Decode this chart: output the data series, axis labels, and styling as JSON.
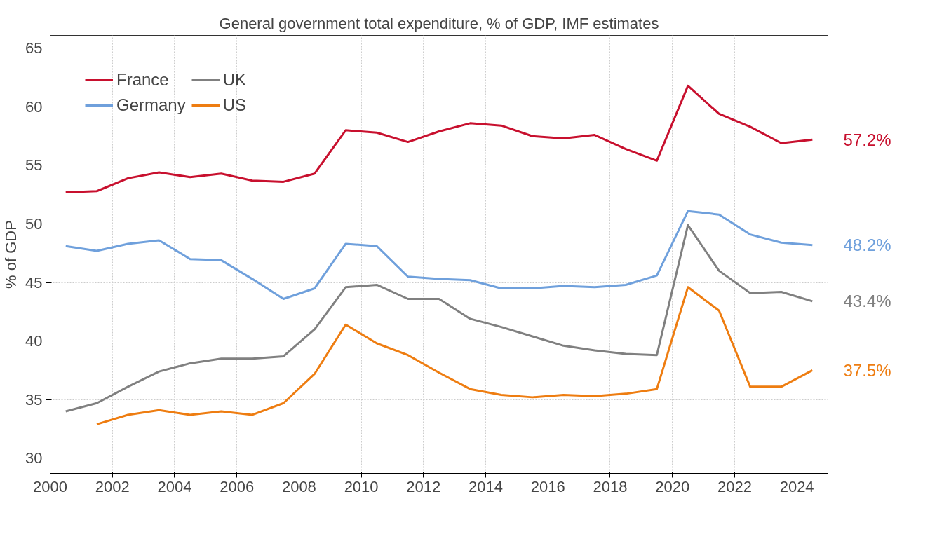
{
  "chart_data": {
    "type": "line",
    "title": "General government total expenditure, % of GDP, IMF estimates",
    "ylabel": "% of GDP",
    "x": [
      2000.5,
      2001.5,
      2002.5,
      2003.5,
      2004.5,
      2005.5,
      2006.5,
      2007.5,
      2008.5,
      2009.5,
      2010.5,
      2011.5,
      2012.5,
      2013.5,
      2014.5,
      2015.5,
      2016.5,
      2017.5,
      2018.5,
      2019.5,
      2020.5,
      2021.5,
      2022.5,
      2023.5,
      2024.5
    ],
    "series": [
      {
        "name": "France",
        "color": "#c8102e",
        "values": [
          52.7,
          52.8,
          53.9,
          54.4,
          54.0,
          54.3,
          53.7,
          53.6,
          54.3,
          58.0,
          57.8,
          57.0,
          57.9,
          58.6,
          58.4,
          57.5,
          57.3,
          57.6,
          56.4,
          55.4,
          61.8,
          59.4,
          58.3,
          56.9,
          57.2
        ],
        "value_labels": [
          null,
          null,
          null,
          null,
          null,
          null,
          null,
          null,
          null,
          null,
          null,
          null,
          null,
          null,
          null,
          null,
          null,
          null,
          null,
          null,
          null,
          null,
          null,
          null,
          "57.2%"
        ]
      },
      {
        "name": "Germany",
        "color": "#6fa0dc",
        "values": [
          48.1,
          47.7,
          48.3,
          48.6,
          47.0,
          46.9,
          45.3,
          43.6,
          44.5,
          48.3,
          48.1,
          45.5,
          45.3,
          45.2,
          44.5,
          44.5,
          44.7,
          44.6,
          44.8,
          45.6,
          51.1,
          50.8,
          49.1,
          48.4,
          48.2
        ],
        "value_labels": [
          null,
          null,
          null,
          null,
          null,
          null,
          null,
          null,
          null,
          null,
          null,
          null,
          null,
          null,
          null,
          null,
          null,
          null,
          null,
          null,
          null,
          null,
          null,
          null,
          "48.2%"
        ]
      },
      {
        "name": "UK",
        "color": "#808080",
        "values": [
          34.0,
          34.7,
          36.1,
          37.4,
          38.1,
          38.5,
          38.5,
          38.7,
          41.0,
          44.6,
          44.8,
          43.6,
          43.6,
          41.9,
          41.2,
          40.4,
          39.6,
          39.2,
          38.9,
          38.8,
          49.9,
          46.0,
          44.1,
          44.2,
          43.4
        ],
        "value_labels": [
          null,
          null,
          null,
          null,
          null,
          null,
          null,
          null,
          null,
          null,
          null,
          null,
          null,
          null,
          null,
          null,
          null,
          null,
          null,
          null,
          null,
          null,
          null,
          null,
          "43.4%"
        ]
      },
      {
        "name": "US",
        "color": "#ee7d11",
        "values": [
          null,
          32.9,
          33.7,
          34.1,
          33.7,
          34.0,
          33.7,
          34.7,
          37.2,
          41.4,
          39.8,
          38.8,
          37.3,
          35.9,
          35.4,
          35.2,
          35.4,
          35.3,
          35.5,
          35.9,
          44.6,
          42.6,
          36.1,
          36.1,
          37.5
        ],
        "value_labels": [
          null,
          null,
          null,
          null,
          null,
          null,
          null,
          null,
          null,
          null,
          null,
          null,
          null,
          null,
          null,
          null,
          null,
          null,
          null,
          null,
          null,
          null,
          null,
          null,
          "37.5%"
        ]
      }
    ],
    "xlim": [
      2000,
      2025
    ],
    "xticks": [
      2000,
      2002,
      2004,
      2006,
      2008,
      2010,
      2012,
      2014,
      2016,
      2018,
      2020,
      2022,
      2024
    ],
    "ylim": [
      28.7,
      66.1
    ],
    "yticks": [
      30,
      35,
      40,
      45,
      50,
      55,
      60,
      65
    ],
    "grid": true,
    "legend": "top left",
    "marker": "none",
    "line_style": "solid"
  }
}
